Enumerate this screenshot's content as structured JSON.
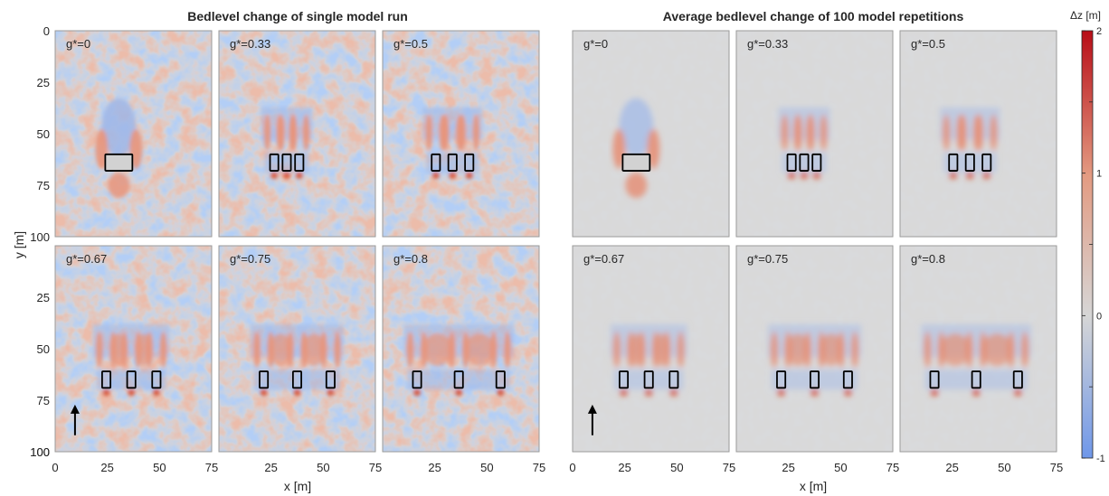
{
  "chart_data": {
    "type": "heatmap",
    "titles": {
      "left": "Bedlevel change of single model run",
      "right": "Average bedlevel change of 100 model repetitions"
    },
    "xlabel": "x [m]",
    "ylabel": "y [m]",
    "xlim": [
      0,
      75
    ],
    "ylim": [
      100,
      0
    ],
    "xticks": [
      "0",
      "25",
      "50",
      "75"
    ],
    "yticks": [
      "0",
      "25",
      "50",
      "75",
      "100"
    ],
    "colorbar": {
      "label": "Δz [m]",
      "min": -1,
      "max": 2,
      "ticks": [
        "2",
        "1",
        "0",
        "-1"
      ],
      "colors": {
        "low": "#6f97e9",
        "mid": "#d6d6d6",
        "high": "#b80d17"
      }
    },
    "panels": [
      {
        "label": "g*=0",
        "group": "single",
        "structures": [
          {
            "x": [
              24,
              37
            ],
            "y": [
              60,
              68
            ]
          }
        ]
      },
      {
        "label": "g*=0.33",
        "group": "single",
        "structures": [
          {
            "x": [
              24.5,
              28.5
            ],
            "y": [
              60,
              68
            ]
          },
          {
            "x": [
              30.5,
              34.5
            ],
            "y": [
              60,
              68
            ]
          },
          {
            "x": [
              36.5,
              40.5
            ],
            "y": [
              60,
              68
            ]
          }
        ]
      },
      {
        "label": "g*=0.5",
        "group": "single",
        "structures": [
          {
            "x": [
              23.5,
              27.5
            ],
            "y": [
              60,
              68
            ]
          },
          {
            "x": [
              31.5,
              35.5
            ],
            "y": [
              60,
              68
            ]
          },
          {
            "x": [
              39.5,
              43.5
            ],
            "y": [
              60,
              68
            ]
          }
        ]
      },
      {
        "label": "g*=0.67",
        "group": "single",
        "structures": [
          {
            "x": [
              22.5,
              26.5
            ],
            "y": [
              61,
              69
            ]
          },
          {
            "x": [
              34.5,
              38.5
            ],
            "y": [
              61,
              69
            ]
          },
          {
            "x": [
              46.5,
              50.5
            ],
            "y": [
              61,
              69
            ]
          }
        ]
      },
      {
        "label": "g*=0.75",
        "group": "single",
        "structures": [
          {
            "x": [
              19.5,
              23.5
            ],
            "y": [
              61,
              69
            ]
          },
          {
            "x": [
              35.5,
              39.5
            ],
            "y": [
              61,
              69
            ]
          },
          {
            "x": [
              51.5,
              55.5
            ],
            "y": [
              61,
              69
            ]
          }
        ]
      },
      {
        "label": "g*=0.8",
        "group": "single",
        "structures": [
          {
            "x": [
              14.5,
              18.5
            ],
            "y": [
              61,
              69
            ]
          },
          {
            "x": [
              34.5,
              38.5
            ],
            "y": [
              61,
              69
            ]
          },
          {
            "x": [
              54.5,
              58.5
            ],
            "y": [
              61,
              69
            ]
          }
        ]
      },
      {
        "label": "g*=0",
        "group": "average",
        "structures": [
          {
            "x": [
              24,
              37
            ],
            "y": [
              60,
              68
            ]
          }
        ]
      },
      {
        "label": "g*=0.33",
        "group": "average",
        "structures": [
          {
            "x": [
              24.5,
              28.5
            ],
            "y": [
              60,
              68
            ]
          },
          {
            "x": [
              30.5,
              34.5
            ],
            "y": [
              60,
              68
            ]
          },
          {
            "x": [
              36.5,
              40.5
            ],
            "y": [
              60,
              68
            ]
          }
        ]
      },
      {
        "label": "g*=0.5",
        "group": "average",
        "structures": [
          {
            "x": [
              23.5,
              27.5
            ],
            "y": [
              60,
              68
            ]
          },
          {
            "x": [
              31.5,
              35.5
            ],
            "y": [
              60,
              68
            ]
          },
          {
            "x": [
              39.5,
              43.5
            ],
            "y": [
              60,
              68
            ]
          }
        ]
      },
      {
        "label": "g*=0.67",
        "group": "average",
        "structures": [
          {
            "x": [
              22.5,
              26.5
            ],
            "y": [
              61,
              69
            ]
          },
          {
            "x": [
              34.5,
              38.5
            ],
            "y": [
              61,
              69
            ]
          },
          {
            "x": [
              46.5,
              50.5
            ],
            "y": [
              61,
              69
            ]
          }
        ]
      },
      {
        "label": "g*=0.75",
        "group": "average",
        "structures": [
          {
            "x": [
              19.5,
              23.5
            ],
            "y": [
              61,
              69
            ]
          },
          {
            "x": [
              35.5,
              39.5
            ],
            "y": [
              61,
              69
            ]
          },
          {
            "x": [
              51.5,
              55.5
            ],
            "y": [
              61,
              69
            ]
          }
        ]
      },
      {
        "label": "g*=0.8",
        "group": "average",
        "structures": [
          {
            "x": [
              14.5,
              18.5
            ],
            "y": [
              61,
              69
            ]
          },
          {
            "x": [
              34.5,
              38.5
            ],
            "y": [
              61,
              69
            ]
          },
          {
            "x": [
              54.5,
              58.5
            ],
            "y": [
              61,
              69
            ]
          }
        ]
      }
    ],
    "flow_arrow": {
      "x": 9.5,
      "y": [
        92,
        78
      ]
    }
  }
}
